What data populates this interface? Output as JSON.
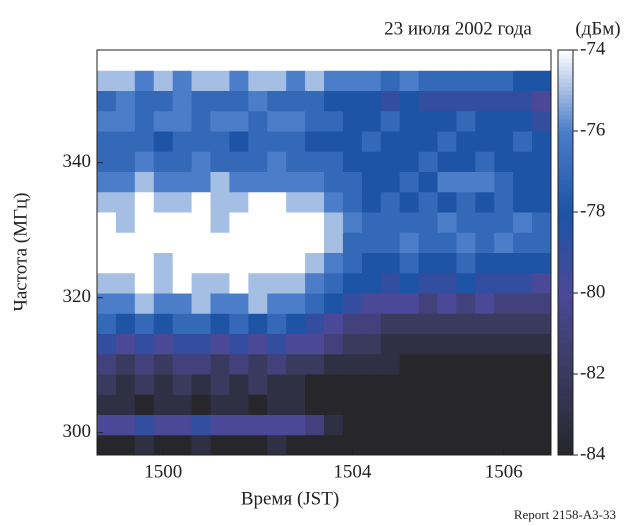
{
  "chart_data": {
    "type": "heatmap",
    "title": "23 июля 2002 года",
    "xlabel": "Время (JST)",
    "ylabel": "Частота (МГц)",
    "footer": "Report 2158-A3-33",
    "categories": [
      null,
      null,
      null,
      "1500",
      null,
      null,
      null,
      null,
      null,
      null,
      null,
      null,
      null,
      "1504",
      null,
      null,
      null,
      null,
      null,
      null,
      null,
      "1506",
      null,
      null
    ],
    "y": [
      298.2,
      301.2,
      304.2,
      307.2,
      310.2,
      313.2,
      316.2,
      319.2,
      322.2,
      325.2,
      328.2,
      331.2,
      334.2,
      337.2,
      340.2,
      343.2,
      346.2,
      349.2,
      352.2,
      355.2
    ],
    "ylim": [
      296.7,
      356.7
    ],
    "yticks": [
      300,
      320,
      340
    ],
    "values": [
      [
        -84,
        -84,
        -83,
        -84,
        -84,
        -83,
        -84,
        -84,
        -84,
        -83,
        -84,
        -84,
        -84,
        -84,
        -84,
        -84,
        -84,
        -84,
        -84,
        -84,
        -84,
        -84,
        -84,
        -84
      ],
      [
        -80,
        -80,
        -79,
        -80,
        -80,
        -79,
        -80,
        -80,
        -80,
        -80,
        -80,
        -81,
        -83,
        -84,
        -84,
        -84,
        -84,
        -84,
        -84,
        -84,
        -84,
        -84,
        -84,
        -84
      ],
      [
        -83,
        -83,
        -84,
        -83,
        -83,
        -84,
        -83,
        -83,
        -84,
        -83,
        -83,
        -84,
        -84,
        -84,
        -84,
        -84,
        -84,
        -84,
        -84,
        -84,
        -84,
        -84,
        -84,
        -84
      ],
      [
        -82,
        -83,
        -82,
        -83,
        -82,
        -83,
        -82,
        -83,
        -82,
        -83,
        -83,
        -84,
        -84,
        -84,
        -84,
        -84,
        -84,
        -84,
        -84,
        -84,
        -84,
        -84,
        -84,
        -84
      ],
      [
        -81,
        -82,
        -81,
        -82,
        -81,
        -81,
        -82,
        -81,
        -82,
        -81,
        -82,
        -82,
        -83,
        -83,
        -83,
        -83,
        -84,
        -84,
        -84,
        -84,
        -84,
        -84,
        -84,
        -84
      ],
      [
        -79,
        -80,
        -79,
        -80,
        -79,
        -79,
        -80,
        -79,
        -80,
        -79,
        -80,
        -80,
        -81,
        -82,
        -82,
        -83,
        -83,
        -83,
        -83,
        -83,
        -83,
        -83,
        -83,
        -83
      ],
      [
        -77,
        -78,
        -77,
        -78,
        -77,
        -77,
        -78,
        -77,
        -78,
        -77,
        -78,
        -79,
        -80,
        -81,
        -81,
        -82,
        -82,
        -82,
        -82,
        -82,
        -82,
        -82,
        -82,
        -82
      ],
      [
        -76,
        -76,
        -75,
        -76,
        -76,
        -75,
        -76,
        -76,
        -75,
        -76,
        -76,
        -77,
        -78,
        -79,
        -80,
        -80,
        -80,
        -81,
        -80,
        -81,
        -80,
        -81,
        -81,
        -81
      ],
      [
        -75,
        -75,
        -74,
        -75,
        -74,
        -75,
        -75,
        -74,
        -75,
        -75,
        -75,
        -76,
        -77,
        -78,
        -78,
        -79,
        -78,
        -79,
        -79,
        -78,
        -79,
        -79,
        -79,
        -80
      ],
      [
        -74,
        -74,
        -74,
        -75,
        -74,
        -74,
        -74,
        -74,
        -74,
        -74,
        -74,
        -75,
        -76,
        -77,
        -78,
        -78,
        -77,
        -78,
        -78,
        -77,
        -78,
        -78,
        -78,
        -78
      ],
      [
        -74,
        -74,
        -74,
        -74,
        -74,
        -74,
        -74,
        -74,
        -74,
        -74,
        -74,
        -74,
        -75,
        -77,
        -77,
        -77,
        -76,
        -77,
        -77,
        -76,
        -77,
        -76,
        -77,
        -77
      ],
      [
        -74,
        -75,
        -74,
        -74,
        -74,
        -74,
        -75,
        -74,
        -74,
        -74,
        -74,
        -74,
        -75,
        -76,
        -77,
        -77,
        -77,
        -77,
        -76,
        -77,
        -77,
        -77,
        -76,
        -77
      ],
      [
        -75,
        -75,
        -74,
        -75,
        -75,
        -74,
        -75,
        -75,
        -74,
        -74,
        -75,
        -75,
        -76,
        -77,
        -78,
        -77,
        -78,
        -77,
        -78,
        -77,
        -78,
        -77,
        -78,
        -78
      ],
      [
        -76,
        -76,
        -75,
        -76,
        -76,
        -76,
        -75,
        -76,
        -76,
        -76,
        -76,
        -76,
        -77,
        -77,
        -78,
        -78,
        -77,
        -78,
        -76,
        -76,
        -76,
        -77,
        -78,
        -78
      ],
      [
        -77,
        -77,
        -76,
        -77,
        -77,
        -76,
        -77,
        -77,
        -77,
        -76,
        -77,
        -77,
        -77,
        -78,
        -78,
        -78,
        -78,
        -77,
        -78,
        -78,
        -77,
        -78,
        -78,
        -78
      ],
      [
        -77,
        -77,
        -77,
        -78,
        -77,
        -77,
        -77,
        -78,
        -77,
        -77,
        -77,
        -78,
        -78,
        -78,
        -77,
        -78,
        -78,
        -78,
        -77,
        -78,
        -78,
        -78,
        -77,
        -78
      ],
      [
        -76,
        -76,
        -77,
        -76,
        -76,
        -77,
        -76,
        -76,
        -77,
        -76,
        -76,
        -77,
        -77,
        -78,
        -78,
        -77,
        -78,
        -78,
        -78,
        -77,
        -78,
        -78,
        -78,
        -79
      ],
      [
        -77,
        -76,
        -77,
        -77,
        -76,
        -77,
        -77,
        -77,
        -76,
        -77,
        -77,
        -77,
        -78,
        -78,
        -78,
        -79,
        -78,
        -79,
        -79,
        -79,
        -79,
        -79,
        -79,
        -80
      ],
      [
        -75,
        -75,
        -76,
        -75,
        -76,
        -75,
        -75,
        -76,
        -75,
        -75,
        -76,
        -75,
        -76,
        -76,
        -76,
        -77,
        -76,
        -77,
        -77,
        -77,
        -77,
        -77,
        -78,
        -78
      ],
      [
        -74,
        -74,
        -74,
        -74,
        -74,
        -74,
        -74,
        -74,
        -74,
        -74,
        -74,
        -74,
        -74,
        -74,
        -74,
        -74,
        -74,
        -74,
        -74,
        -74,
        -74,
        -74,
        -74,
        -74
      ]
    ],
    "colorbar_label": "(дБм)",
    "clim": [
      -84,
      -74
    ],
    "cticks": [
      -84,
      -82,
      -80,
      -78,
      -76,
      -74
    ],
    "colormap": [
      "#26262b",
      "#3a3a5e",
      "#4b4898",
      "#1d54a6",
      "#4b7dc9",
      "#ffffff"
    ]
  }
}
